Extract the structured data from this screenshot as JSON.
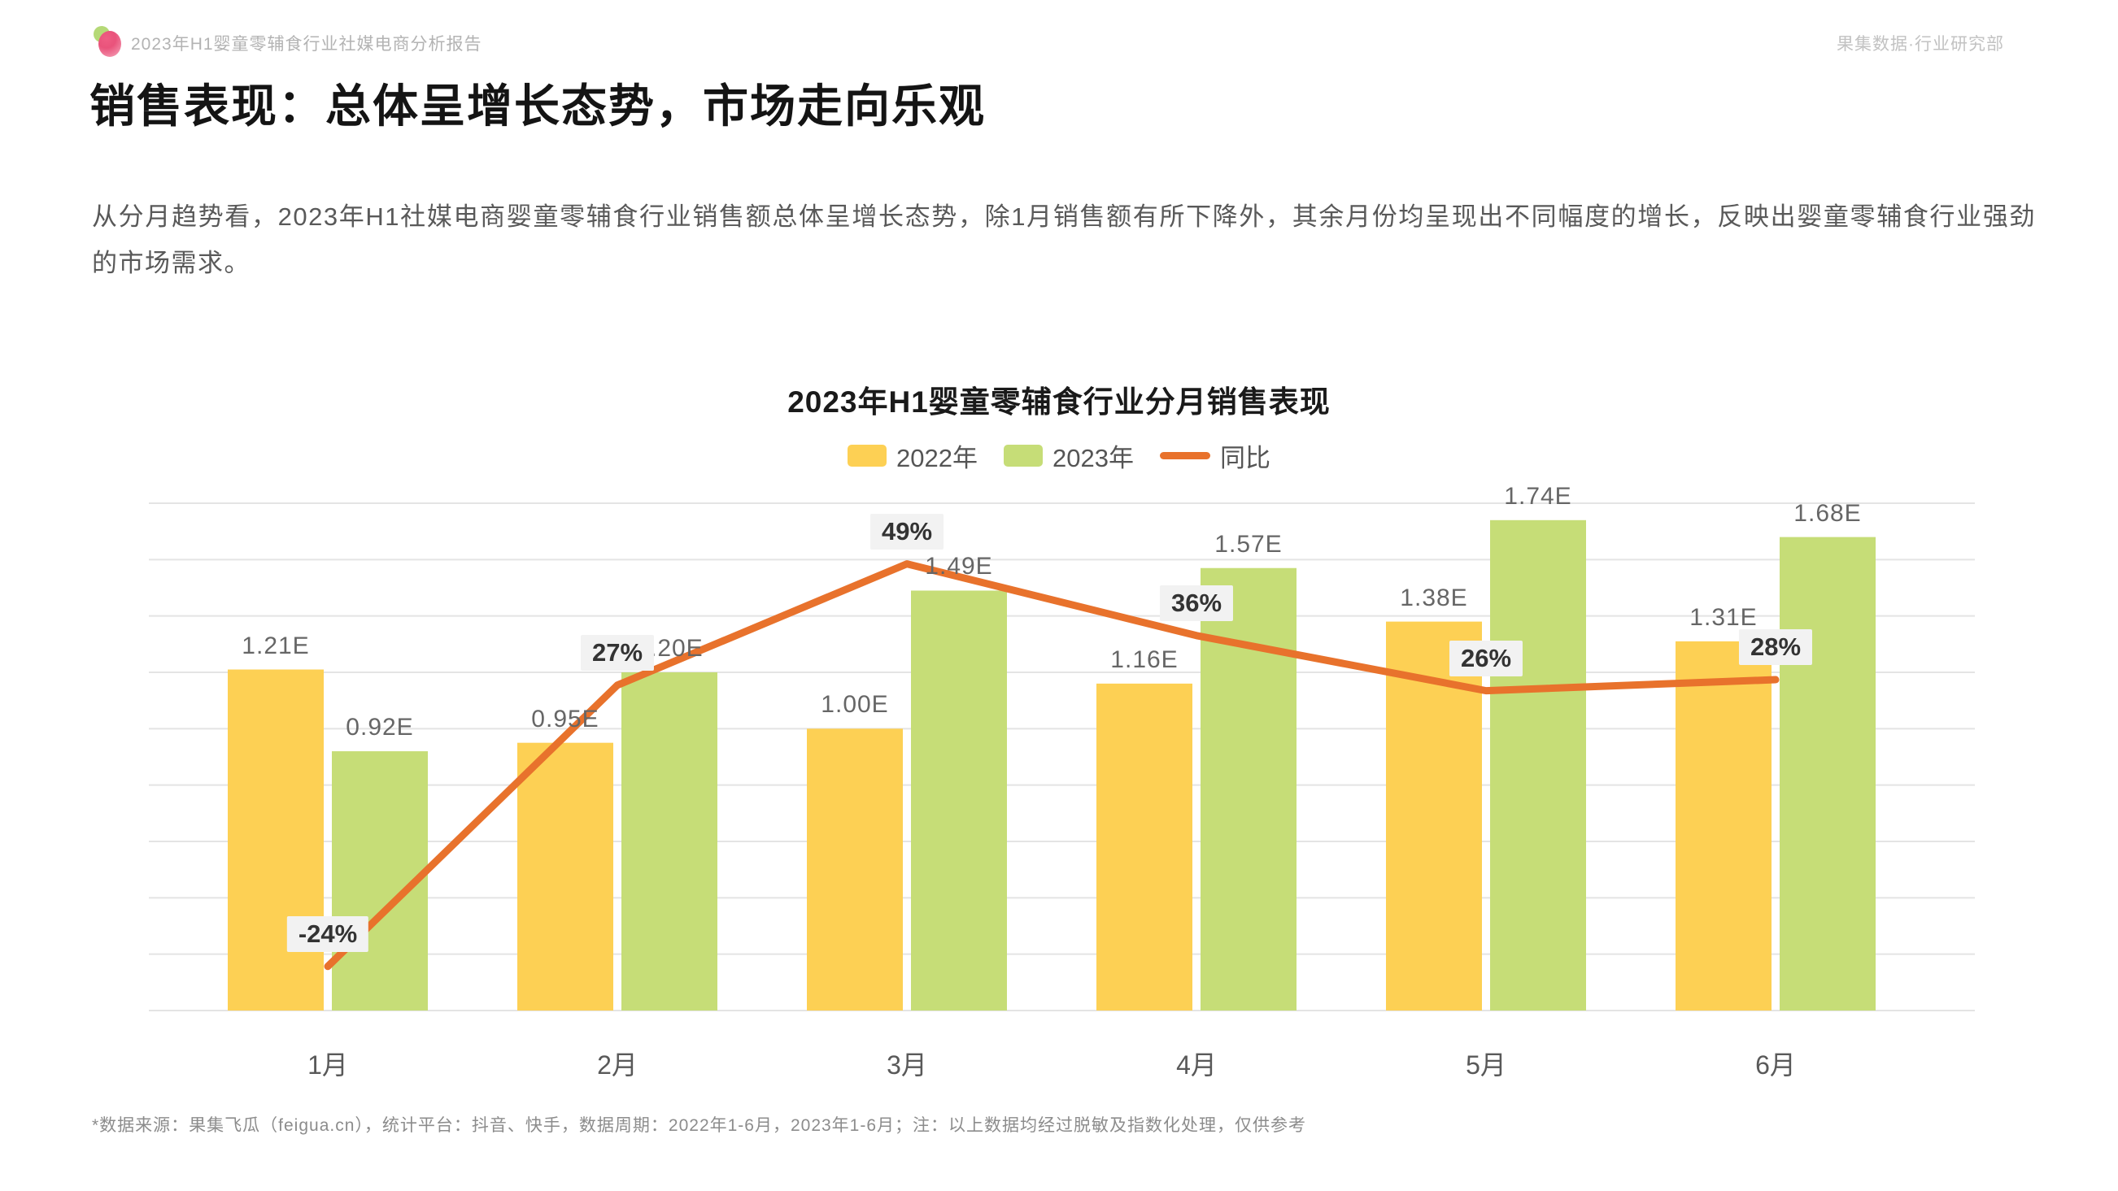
{
  "header": {
    "doc_title": "2023年H1婴童零辅食行业社媒电商分析报告",
    "org": "果集数据·行业研究部",
    "logo_colors": {
      "leaf": "#b5d977",
      "berry": "#e9537b"
    }
  },
  "page": {
    "title": "销售表现：总体呈增长态势，市场走向乐观",
    "paragraph": "从分月趋势看，2023年H1社媒电商婴童零辅食行业销售额总体呈增长态势，除1月销售额有所下降外，其余月份均呈现出不同幅度的增长，反映出婴童零辅食行业强劲的市场需求。"
  },
  "chart_data": {
    "type": "bar",
    "title": "2023年H1婴童零辅食行业分月销售表现",
    "categories": [
      "1月",
      "2月",
      "3月",
      "4月",
      "5月",
      "6月"
    ],
    "series": [
      {
        "name": "2022年",
        "type": "bar",
        "color": "#FDD054",
        "values": [
          1.21,
          0.95,
          1.0,
          1.16,
          1.38,
          1.31
        ],
        "labels": [
          "1.21E",
          "0.95E",
          "1.00E",
          "1.16E",
          "1.38E",
          "1.31E"
        ]
      },
      {
        "name": "2023年",
        "type": "bar",
        "color": "#C6DD77",
        "values": [
          0.92,
          1.2,
          1.49,
          1.57,
          1.74,
          1.68
        ],
        "labels": [
          "0.92E",
          "1.20E",
          "1.49E",
          "1.57E",
          "1.74E",
          "1.68E"
        ]
      },
      {
        "name": "同比",
        "type": "line",
        "color": "#E8722C",
        "values": [
          -24,
          27,
          49,
          36,
          26,
          28
        ],
        "labels": [
          "-24%",
          "27%",
          "49%",
          "36%",
          "26%",
          "28%"
        ]
      }
    ],
    "y_axis": {
      "min": 0,
      "max": 1.8,
      "grid_step": 0.2,
      "unit": "E",
      "labels_visible": false
    },
    "y2_axis": {
      "min": -32,
      "max": 60,
      "labels_visible": false
    },
    "legend": [
      "2022年",
      "2023年",
      "同比"
    ],
    "legend_position": "top-center",
    "grid": true,
    "grid_color": "#e4e4e4",
    "pct_label_bg": "#f2f2f2"
  },
  "footnote": "*数据来源：果集飞瓜（feigua.cn），统计平台：抖音、快手，数据周期：2022年1-6月，2023年1-6月；注：以上数据均经过脱敏及指数化处理，仅供参考"
}
